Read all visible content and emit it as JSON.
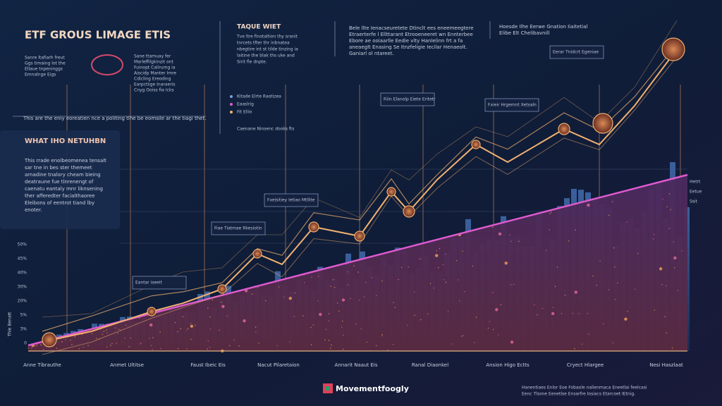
{
  "header": {
    "title": "ETF GROUS LIMAGE ETIS",
    "intro": [
      "Sanre ltafiarh freut",
      "Ggs timaing lot the",
      "Ellaue tnpeninggs",
      "Emnalnge Eigs"
    ],
    "badge_lines": [
      "Sane ttamuay fer",
      "Marleffilgkinzit ont",
      "Fuinopt Calirumg ia",
      "Aiscidp Manter Imre",
      "Cdicling Ereoding",
      "Earpctiige Inaraeris",
      "Cnyg Ooiss fia Icks"
    ],
    "caption": "This are the eniy eoreatien nce a politing tlhe be eomsile ar the tiagi thet."
  },
  "panel": {
    "title": "WHAT IHO NETUHBN",
    "body": [
      "This rrade enolbeomenea tensalt",
      "sar tne in bes ster themeet",
      "arnadine tnalory cheam bieing",
      "deatraune fue tlnrenengt of",
      "caenatu eantaly mnr liknsening",
      "ther afferedter facialthaoree",
      "Eleibons of eentrot tiand lby",
      "enoter."
    ]
  },
  "column": {
    "title": "TAQUE WIET",
    "body": [
      "Tve ltre finotaltion thy sranit",
      "tnrcets tfter thr inbnatea",
      "nbegtire int st tilde tinzing ia",
      "laitine the blak ths uke and",
      "Sirit fle dnpte."
    ],
    "legend": [
      "Kitade Elrte Raotizea",
      "Eaaslrig",
      "Fit Eliio"
    ],
    "note": "Caenane Ninsenc dooks fts"
  },
  "notes": {
    "middle": [
      "Bele llte Ienacseuretete Dtinclt ees eneemeegtere",
      "Etraerterfe l Ellttarant Etrooeneeret wn Ennterbee",
      "Ebore ae ooiaarlle Eedie vlty Hanlelinn frt a fa",
      "aneaeglt Enasing Se Itnzfeligie Iecilar Henaeolt.",
      "Ganiarl ol ntareet."
    ],
    "right": [
      "Hoesde Ilhe Eerwe Gnation Iiaitetial",
      "Elibe Elt Chelibavnill"
    ]
  },
  "callouts": [
    {
      "label": "Eantar iseeit"
    },
    {
      "label": "Fiae Tiatmae Rkesiotin"
    },
    {
      "label": "Fxeisitiey Ietiao Mtllite"
    },
    {
      "label": "Fiiin Elanolp Eiete Eritetr"
    },
    {
      "label": "Fxieir Hrgemnt Xetsaln"
    },
    {
      "label": "Eerar Tnidcrt Egeniae"
    }
  ],
  "side_labels": [
    "Hetrt",
    "Eetue",
    "Ssit"
  ],
  "y_labels": [
    "50%",
    "45%",
    "40%",
    "30%",
    "20%",
    "5%",
    "3%",
    "0"
  ],
  "y_title": "Thie Benatt",
  "x_labels": [
    "Anne Tibrauthe",
    "Anmet Ultitse",
    "Faust Ibeic Eis",
    "Nacut Pilaretaion",
    "Annarit Naaut Eis",
    "Ranal Diaonkel",
    "Ansion Higo Ectts",
    "Cryect Hlargee",
    "Nesi Haszlaat"
  ],
  "footer": {
    "brand": "Movementfoogly",
    "note": [
      "Hanentiaes Enlor Eoe Fobaole nalienmaca Eneetlai feelcasi",
      "Eenc Tlsone Eenetlse Ensarfre Iosiacs Etarcoet IEtnig."
    ]
  }
}
